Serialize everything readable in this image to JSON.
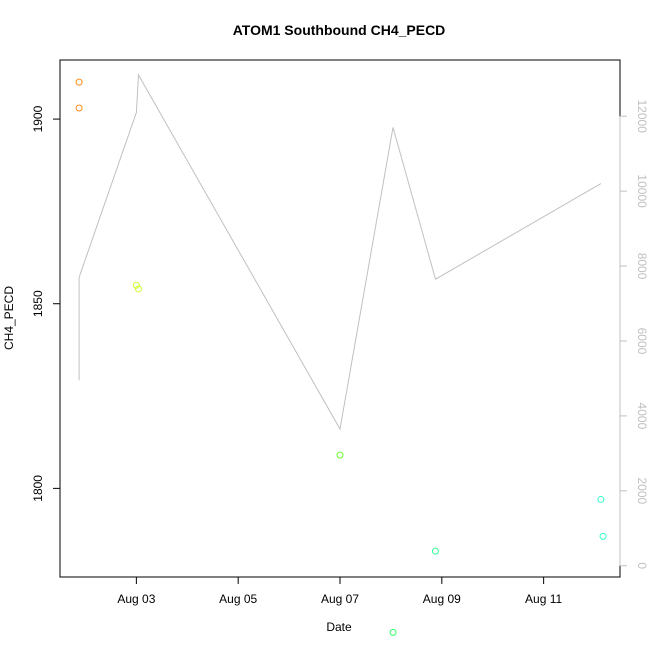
{
  "chart_data": {
    "type": "scatter",
    "title": "ATOM1 Southbound CH4_PECD",
    "xlabel": "Date",
    "ylabel": "CH4_PECD",
    "x_ticks": [
      "Aug 03",
      "Aug 05",
      "Aug 07",
      "Aug 09",
      "Aug 11"
    ],
    "y_ticks": [
      "1800",
      "1850",
      "1900"
    ],
    "y2_ticks": [
      "0",
      "2000",
      "4000",
      "6000",
      "8000",
      "10000",
      "12000"
    ],
    "xlim": [
      "2016-08-01 12:00",
      "2016-08-12 12:00"
    ],
    "ylim": [
      1776,
      1916
    ],
    "y2lim": [
      -300,
      13500
    ],
    "axis_color_right": "#c0c0c0",
    "line_color": "#c0c0c0",
    "series": [
      {
        "values": [
          {
            "x": "2016-08-01 21:00",
            "y": 1910,
            "color": "#ff8c1a"
          },
          {
            "x": "2016-08-01 21:00",
            "y": 1903,
            "color": "#ff8c1a"
          },
          {
            "x": "2016-08-03 00:00",
            "y": 1855,
            "color": "#ccff33"
          },
          {
            "x": "2016-08-03 01:00",
            "y": 1854,
            "color": "#ccff33"
          },
          {
            "x": "2016-08-07 00:00",
            "y": 1809,
            "color": "#66ff33"
          },
          {
            "x": "2016-08-08 01:00",
            "y": 1761,
            "color": "#33ff66"
          },
          {
            "x": "2016-08-08 21:00",
            "y": 1783,
            "color": "#33ff99"
          },
          {
            "x": "2016-08-12 03:00",
            "y": 1797,
            "color": "#33ffcc"
          },
          {
            "x": "2016-08-12 04:00",
            "y": 1787,
            "color": "#33ffcc"
          }
        ]
      },
      {
        "axis": "right",
        "values": [
          {
            "x": "2016-08-01 21:00",
            "y": 4950
          },
          {
            "x": "2016-08-01 21:00",
            "y": 7700
          },
          {
            "x": "2016-08-03 00:00",
            "y": 12100
          },
          {
            "x": "2016-08-03 01:00",
            "y": 13100
          },
          {
            "x": "2016-08-07 00:00",
            "y": 3650
          },
          {
            "x": "2016-08-08 01:00",
            "y": 11700
          },
          {
            "x": "2016-08-08 21:00",
            "y": 7650
          },
          {
            "x": "2016-08-12 03:00",
            "y": 10200
          }
        ]
      }
    ]
  }
}
